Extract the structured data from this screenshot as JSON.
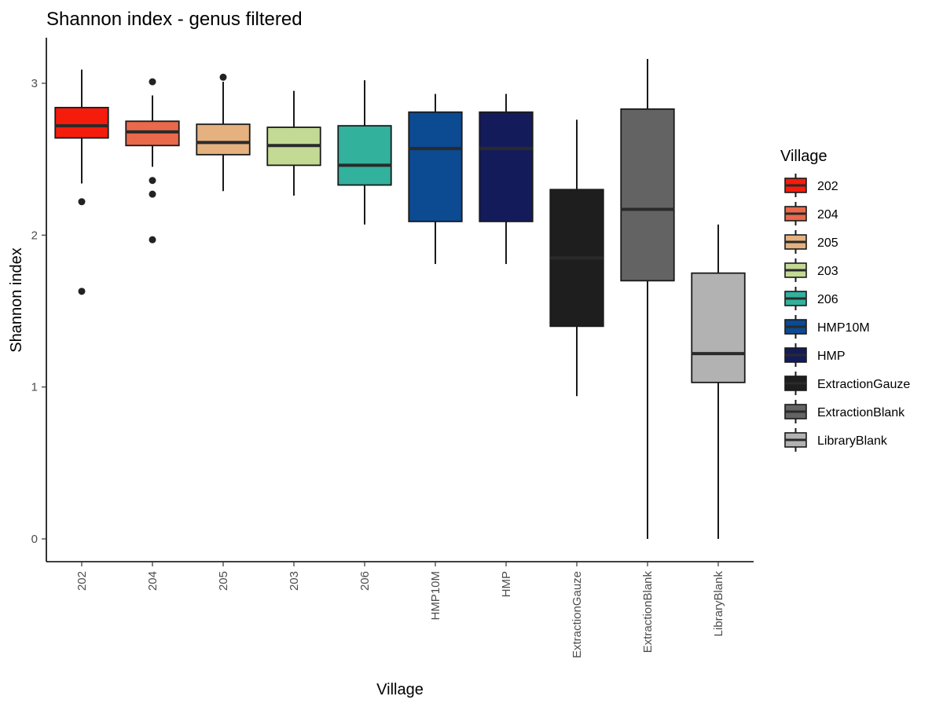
{
  "chart_data": {
    "type": "boxplot",
    "title": "Shannon index - genus filtered",
    "xlabel": "Village",
    "ylabel": "Shannon index",
    "ylim": [
      -0.15,
      3.3
    ],
    "yticks": [
      0,
      1,
      2,
      3
    ],
    "grid": false,
    "legend": {
      "title": "Village",
      "position": "right"
    },
    "categories": [
      "202",
      "204",
      "205",
      "203",
      "206",
      "HMP10M",
      "HMP",
      "ExtractionGauze",
      "ExtractionBlank",
      "LibraryBlank"
    ],
    "series": [
      {
        "name": "202",
        "color": "#f51c0c",
        "whisker_low": 2.34,
        "q1": 2.64,
        "median": 2.72,
        "q3": 2.84,
        "whisker_high": 3.09,
        "outliers": [
          2.22,
          1.63
        ]
      },
      {
        "name": "204",
        "color": "#e9694a",
        "whisker_low": 2.45,
        "q1": 2.59,
        "median": 2.68,
        "q3": 2.75,
        "whisker_high": 2.92,
        "outliers": [
          3.01,
          2.36,
          2.27,
          1.97
        ]
      },
      {
        "name": "205",
        "color": "#e4b17f",
        "whisker_low": 2.29,
        "q1": 2.53,
        "median": 2.61,
        "q3": 2.73,
        "whisker_high": 3.01,
        "outliers": [
          3.04
        ]
      },
      {
        "name": "203",
        "color": "#c3da95",
        "whisker_low": 2.26,
        "q1": 2.46,
        "median": 2.59,
        "q3": 2.71,
        "whisker_high": 2.95,
        "outliers": []
      },
      {
        "name": "206",
        "color": "#32b19d",
        "whisker_low": 2.07,
        "q1": 2.33,
        "median": 2.46,
        "q3": 2.72,
        "whisker_high": 3.02,
        "outliers": []
      },
      {
        "name": "HMP10M",
        "color": "#0c4a92",
        "whisker_low": 1.81,
        "q1": 2.09,
        "median": 2.57,
        "q3": 2.81,
        "whisker_high": 2.93,
        "outliers": []
      },
      {
        "name": "HMP",
        "color": "#131b5a",
        "whisker_low": 1.81,
        "q1": 2.09,
        "median": 2.57,
        "q3": 2.81,
        "whisker_high": 2.93,
        "outliers": []
      },
      {
        "name": "ExtractionGauze",
        "color": "#1e1e1e",
        "whisker_low": 0.94,
        "q1": 1.4,
        "median": 1.85,
        "q3": 2.3,
        "whisker_high": 2.76,
        "outliers": []
      },
      {
        "name": "ExtractionBlank",
        "color": "#636363",
        "whisker_low": 0.0,
        "q1": 1.7,
        "median": 2.17,
        "q3": 2.83,
        "whisker_high": 3.16,
        "outliers": []
      },
      {
        "name": "LibraryBlank",
        "color": "#b2b2b2",
        "whisker_low": 0.0,
        "q1": 1.03,
        "median": 1.22,
        "q3": 1.75,
        "whisker_high": 2.07,
        "outliers": []
      }
    ]
  }
}
